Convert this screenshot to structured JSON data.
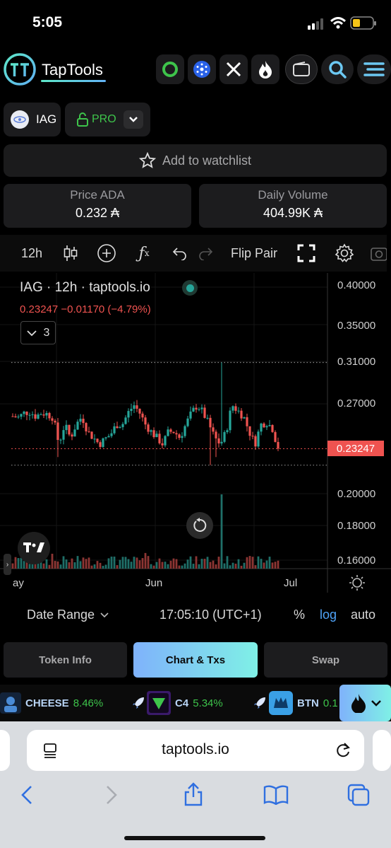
{
  "status": {
    "time": "5:05"
  },
  "header": {
    "brand": "TapTools",
    "icons": [
      "ring-icon",
      "cardano-icon",
      "x-icon",
      "fire-icon",
      "wallet-icon",
      "search-icon",
      "menu-icon"
    ]
  },
  "token": {
    "symbol": "IAG",
    "plan": "PRO"
  },
  "watchlist": {
    "label": "Add to watchlist"
  },
  "stats": {
    "price_label": "Price ADA",
    "price_value": "0.232 ₳",
    "volume_label": "Daily Volume",
    "volume_value": "404.99K ₳"
  },
  "toolbar": {
    "interval": "12h",
    "flip": "Flip Pair"
  },
  "chart_data": {
    "type": "candlestick",
    "title": "IAG · 12h · taptools.io",
    "legend": "0.23247  −0.01170 (−4.79%)",
    "indicator_count": "3",
    "y_ticks": [
      "0.40000",
      "0.35000",
      "0.31000",
      "0.27000",
      "0.23247",
      "0.20000",
      "0.18000",
      "0.16000"
    ],
    "last_price": "0.23247",
    "x_ticks": [
      "ay",
      "Jun",
      "Jul"
    ],
    "log_scale": true,
    "period_high": 0.31,
    "period_low": 0.22,
    "approx_close": [
      0.259,
      0.258,
      0.262,
      0.263,
      0.259,
      0.262,
      0.261,
      0.258,
      0.236,
      0.252,
      0.241,
      0.252,
      0.259,
      0.246,
      0.241,
      0.236,
      0.24,
      0.244,
      0.252,
      0.252,
      0.262,
      0.269,
      0.262,
      0.252,
      0.246,
      0.241,
      0.236,
      0.246,
      0.246,
      0.241,
      0.252,
      0.262,
      0.269,
      0.262,
      0.252,
      0.241,
      0.236,
      0.246,
      0.269,
      0.264,
      0.259,
      0.246,
      0.236,
      0.252,
      0.254,
      0.249,
      0.232
    ]
  },
  "chart_footer": {
    "date_range": "Date Range",
    "time": "17:05:10 (UTC+1)",
    "pct": "%",
    "log": "log",
    "auto": "auto"
  },
  "tabs": [
    "Token Info",
    "Chart & Txs",
    "Swap"
  ],
  "ticker": [
    {
      "sym": "CHEESE",
      "chg": "8.46%"
    },
    {
      "sym": "C4",
      "chg": "5.34%"
    },
    {
      "sym": "BTN",
      "chg": "0.1"
    }
  ],
  "browser": {
    "url": "taptools.io"
  }
}
